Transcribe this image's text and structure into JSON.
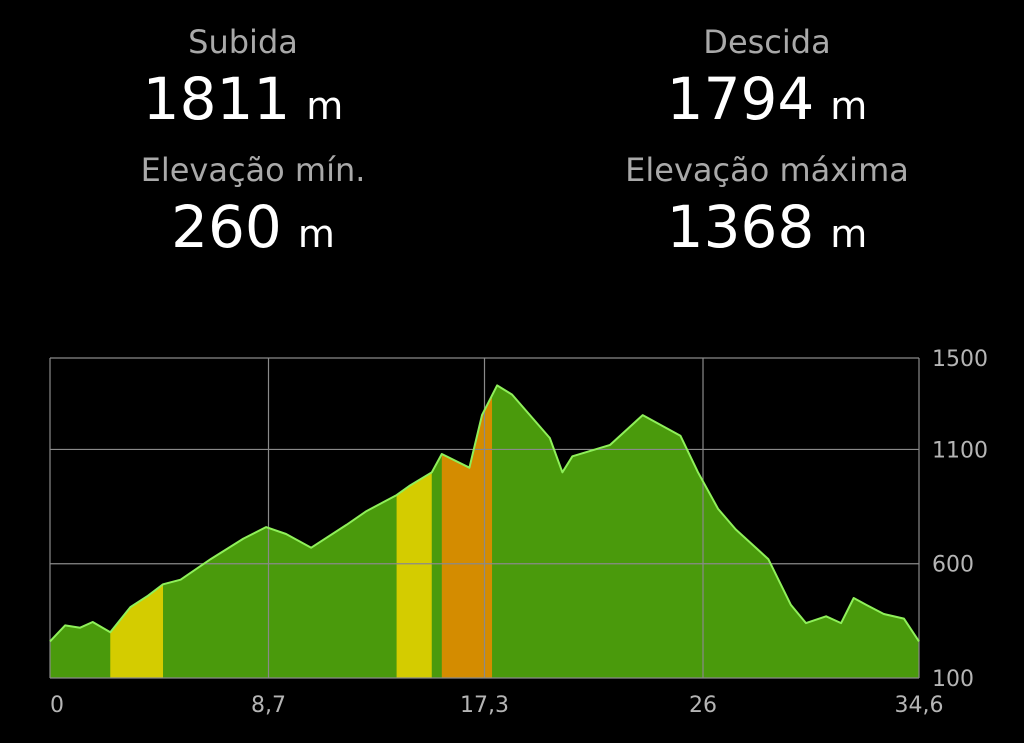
{
  "stats": {
    "subida": {
      "label": "Subida",
      "value": "1811",
      "unit": "m"
    },
    "descida": {
      "label": "Descida",
      "value": "1794",
      "unit": "m"
    },
    "elev_min": {
      "label": "Elevação mín.",
      "value": "260",
      "unit": "m"
    },
    "elev_max": {
      "label": "Elevação máxima",
      "value": "1368",
      "unit": "m"
    }
  },
  "colors": {
    "background": "#000000",
    "grid": "#8a8a8a",
    "fill_green": "#4a9a0c",
    "fill_yellow": "#d4cc00",
    "fill_orange": "#d48c00",
    "outline": "#8ff05a"
  },
  "chart_data": {
    "type": "area",
    "xlabel": "",
    "ylabel": "",
    "xlim": [
      0,
      34.6
    ],
    "ylim": [
      100,
      1500
    ],
    "x_ticks": [
      "0",
      "8,7",
      "17,3",
      "26",
      "34,6"
    ],
    "x_tick_values": [
      0,
      8.7,
      17.3,
      26,
      34.6
    ],
    "y_ticks": [
      "1500",
      "1100",
      "600",
      "100"
    ],
    "y_tick_values": [
      1500,
      1100,
      600,
      100
    ],
    "grid": true,
    "series": [
      {
        "x": [
          0,
          0.6,
          1.2,
          1.7,
          2.4,
          3.2,
          3.9,
          4.5,
          5.2,
          6.4,
          7.7,
          8.6,
          9.4,
          10.4,
          11.8,
          12.6,
          13.8,
          14.3,
          15.2,
          15.6,
          16.7,
          17.2,
          17.8,
          18.4,
          19.9,
          20.4,
          20.8,
          22.3,
          23.6,
          25.1,
          25.8,
          26.6,
          27.3,
          28.6,
          29.5,
          30.1,
          30.9,
          31.5,
          32.0,
          32.5,
          33.2,
          34.0,
          34.6
        ],
        "y": [
          260,
          330,
          320,
          345,
          300,
          410,
          460,
          510,
          530,
          620,
          710,
          760,
          730,
          670,
          770,
          830,
          900,
          940,
          1000,
          1080,
          1020,
          1250,
          1380,
          1340,
          1150,
          1000,
          1070,
          1120,
          1250,
          1160,
          1000,
          840,
          750,
          620,
          420,
          340,
          370,
          340,
          450,
          420,
          380,
          360,
          260
        ]
      }
    ],
    "highlight_bands": [
      {
        "x_range": [
          2.4,
          4.5
        ],
        "color": "#d4cc00"
      },
      {
        "x_range": [
          13.8,
          15.2
        ],
        "color": "#d4cc00"
      },
      {
        "x_range": [
          15.6,
          17.6
        ],
        "color": "#d48c00"
      }
    ]
  }
}
